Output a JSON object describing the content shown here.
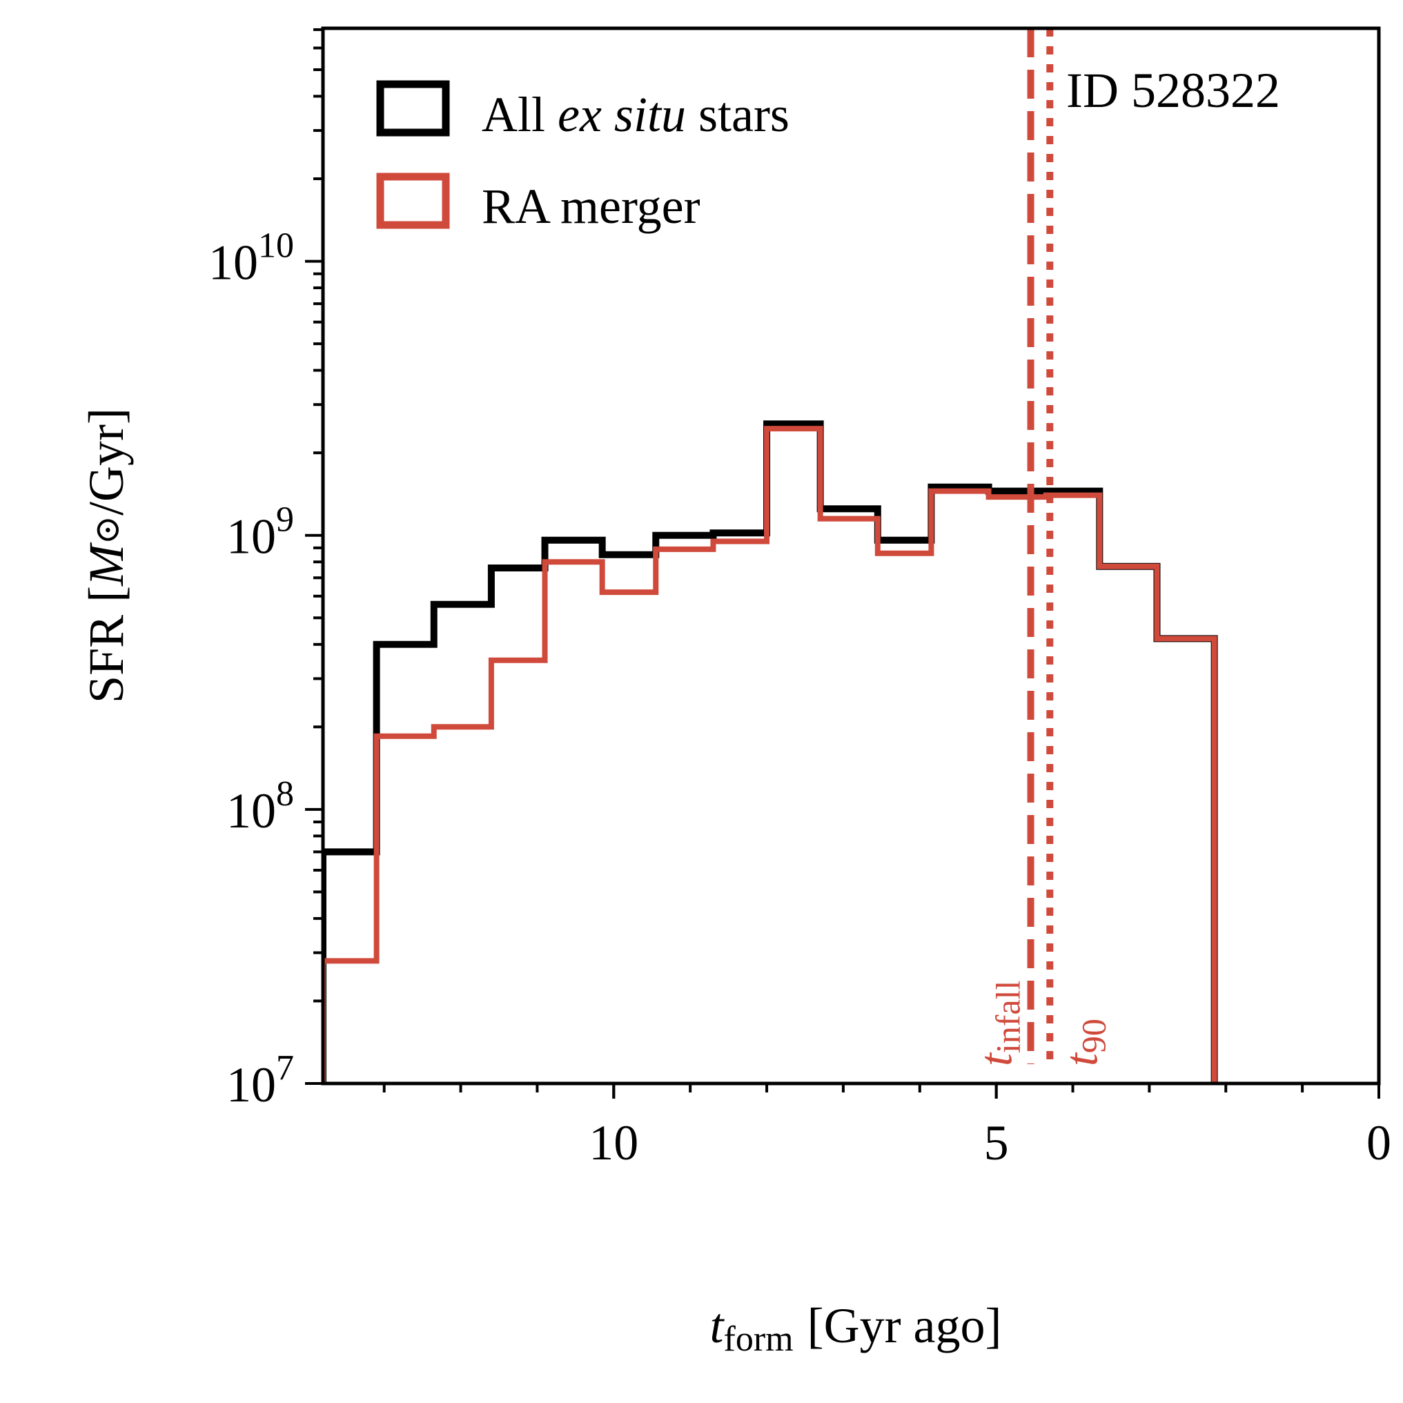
{
  "chart_data": {
    "type": "histogram",
    "title": "",
    "id_label": "ID 528322",
    "xlabel_main": "t",
    "xlabel_sub": "form",
    "xlabel_rest": "[Gyr ago]",
    "ylabel_pre": "SFR [",
    "ylabel_m": "M",
    "ylabel_sun": "⊙",
    "ylabel_post": "/Gyr]",
    "xlim": [
      13.8,
      0
    ],
    "ylim_log10": [
      7,
      10.85
    ],
    "x_ticks": [
      {
        "value": 10,
        "label": "10"
      },
      {
        "value": 5,
        "label": "5"
      },
      {
        "value": 0,
        "label": "0"
      }
    ],
    "y_ticks": [
      {
        "value": 7,
        "base": "10",
        "exp": "7"
      },
      {
        "value": 8,
        "base": "10",
        "exp": "8"
      },
      {
        "value": 9,
        "base": "10",
        "exp": "9"
      },
      {
        "value": 10,
        "base": "10",
        "exp": "10"
      }
    ],
    "bin_edges": [
      13.8,
      13.1,
      12.35,
      11.6,
      10.9,
      10.15,
      9.45,
      8.7,
      8.0,
      7.3,
      6.55,
      5.85,
      5.1,
      4.35,
      3.65,
      2.9
    ],
    "series": [
      {
        "name": "All ex situ stars",
        "color": "#000000",
        "values": [
          70000000.0,
          400000000.0,
          560000000.0,
          760000000.0,
          960000000.0,
          850000000.0,
          1000000000.0,
          1020000000.0,
          2550000000.0,
          1250000000.0,
          960000000.0,
          1500000000.0,
          1450000000.0,
          1450000000.0,
          770000000.0,
          420000000.0
        ]
      },
      {
        "name": "RA merger",
        "color": "#d04a3c",
        "values": [
          28000000.0,
          185000000.0,
          200000000.0,
          350000000.0,
          800000000.0,
          620000000.0,
          890000000.0,
          950000000.0,
          2450000000.0,
          1150000000.0,
          860000000.0,
          1450000000.0,
          1380000000.0,
          1400000000.0,
          770000000.0,
          420000000.0
        ]
      }
    ],
    "legend": {
      "placement": "top-left",
      "items": [
        {
          "pre": "All ",
          "italic": "ex situ",
          "post": " stars",
          "color": "#000000"
        },
        {
          "pre": "RA merger",
          "italic": "",
          "post": "",
          "color": "#d04a3c"
        }
      ]
    },
    "vlines": [
      {
        "name": "t_infall",
        "x": 4.55,
        "style": "dashed",
        "color": "#d04a3c",
        "label_main": "t",
        "label_sub": "infall"
      },
      {
        "name": "t_90",
        "x": 4.3,
        "style": "dotted",
        "color": "#d04a3c",
        "label_main": "t",
        "label_sub": "90"
      }
    ]
  }
}
